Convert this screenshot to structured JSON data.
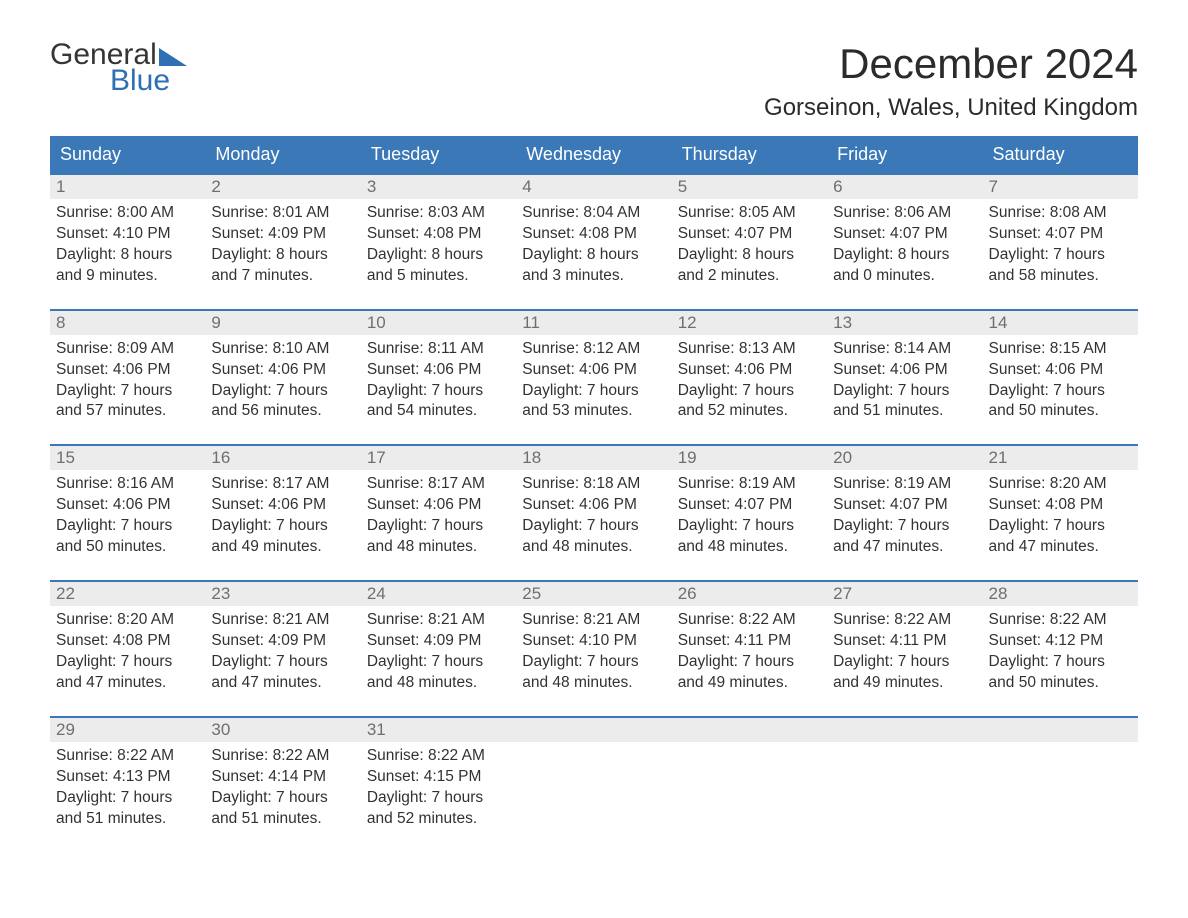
{
  "logo": {
    "word1": "General",
    "word2": "Blue"
  },
  "title": "December 2024",
  "location": "Gorseinon, Wales, United Kingdom",
  "colors": {
    "header_bg": "#3a78b8",
    "header_text": "#ffffff",
    "daynum_bg": "#ececec",
    "daynum_text": "#6f6f6f",
    "body_text": "#323232",
    "accent": "#2f6fb3"
  },
  "day_names": [
    "Sunday",
    "Monday",
    "Tuesday",
    "Wednesday",
    "Thursday",
    "Friday",
    "Saturday"
  ],
  "weeks": [
    [
      {
        "n": "1",
        "sunrise": "8:00 AM",
        "sunset": "4:10 PM",
        "dl1": "8 hours",
        "dl2": "and 9 minutes."
      },
      {
        "n": "2",
        "sunrise": "8:01 AM",
        "sunset": "4:09 PM",
        "dl1": "8 hours",
        "dl2": "and 7 minutes."
      },
      {
        "n": "3",
        "sunrise": "8:03 AM",
        "sunset": "4:08 PM",
        "dl1": "8 hours",
        "dl2": "and 5 minutes."
      },
      {
        "n": "4",
        "sunrise": "8:04 AM",
        "sunset": "4:08 PM",
        "dl1": "8 hours",
        "dl2": "and 3 minutes."
      },
      {
        "n": "5",
        "sunrise": "8:05 AM",
        "sunset": "4:07 PM",
        "dl1": "8 hours",
        "dl2": "and 2 minutes."
      },
      {
        "n": "6",
        "sunrise": "8:06 AM",
        "sunset": "4:07 PM",
        "dl1": "8 hours",
        "dl2": "and 0 minutes."
      },
      {
        "n": "7",
        "sunrise": "8:08 AM",
        "sunset": "4:07 PM",
        "dl1": "7 hours",
        "dl2": "and 58 minutes."
      }
    ],
    [
      {
        "n": "8",
        "sunrise": "8:09 AM",
        "sunset": "4:06 PM",
        "dl1": "7 hours",
        "dl2": "and 57 minutes."
      },
      {
        "n": "9",
        "sunrise": "8:10 AM",
        "sunset": "4:06 PM",
        "dl1": "7 hours",
        "dl2": "and 56 minutes."
      },
      {
        "n": "10",
        "sunrise": "8:11 AM",
        "sunset": "4:06 PM",
        "dl1": "7 hours",
        "dl2": "and 54 minutes."
      },
      {
        "n": "11",
        "sunrise": "8:12 AM",
        "sunset": "4:06 PM",
        "dl1": "7 hours",
        "dl2": "and 53 minutes."
      },
      {
        "n": "12",
        "sunrise": "8:13 AM",
        "sunset": "4:06 PM",
        "dl1": "7 hours",
        "dl2": "and 52 minutes."
      },
      {
        "n": "13",
        "sunrise": "8:14 AM",
        "sunset": "4:06 PM",
        "dl1": "7 hours",
        "dl2": "and 51 minutes."
      },
      {
        "n": "14",
        "sunrise": "8:15 AM",
        "sunset": "4:06 PM",
        "dl1": "7 hours",
        "dl2": "and 50 minutes."
      }
    ],
    [
      {
        "n": "15",
        "sunrise": "8:16 AM",
        "sunset": "4:06 PM",
        "dl1": "7 hours",
        "dl2": "and 50 minutes."
      },
      {
        "n": "16",
        "sunrise": "8:17 AM",
        "sunset": "4:06 PM",
        "dl1": "7 hours",
        "dl2": "and 49 minutes."
      },
      {
        "n": "17",
        "sunrise": "8:17 AM",
        "sunset": "4:06 PM",
        "dl1": "7 hours",
        "dl2": "and 48 minutes."
      },
      {
        "n": "18",
        "sunrise": "8:18 AM",
        "sunset": "4:06 PM",
        "dl1": "7 hours",
        "dl2": "and 48 minutes."
      },
      {
        "n": "19",
        "sunrise": "8:19 AM",
        "sunset": "4:07 PM",
        "dl1": "7 hours",
        "dl2": "and 48 minutes."
      },
      {
        "n": "20",
        "sunrise": "8:19 AM",
        "sunset": "4:07 PM",
        "dl1": "7 hours",
        "dl2": "and 47 minutes."
      },
      {
        "n": "21",
        "sunrise": "8:20 AM",
        "sunset": "4:08 PM",
        "dl1": "7 hours",
        "dl2": "and 47 minutes."
      }
    ],
    [
      {
        "n": "22",
        "sunrise": "8:20 AM",
        "sunset": "4:08 PM",
        "dl1": "7 hours",
        "dl2": "and 47 minutes."
      },
      {
        "n": "23",
        "sunrise": "8:21 AM",
        "sunset": "4:09 PM",
        "dl1": "7 hours",
        "dl2": "and 47 minutes."
      },
      {
        "n": "24",
        "sunrise": "8:21 AM",
        "sunset": "4:09 PM",
        "dl1": "7 hours",
        "dl2": "and 48 minutes."
      },
      {
        "n": "25",
        "sunrise": "8:21 AM",
        "sunset": "4:10 PM",
        "dl1": "7 hours",
        "dl2": "and 48 minutes."
      },
      {
        "n": "26",
        "sunrise": "8:22 AM",
        "sunset": "4:11 PM",
        "dl1": "7 hours",
        "dl2": "and 49 minutes."
      },
      {
        "n": "27",
        "sunrise": "8:22 AM",
        "sunset": "4:11 PM",
        "dl1": "7 hours",
        "dl2": "and 49 minutes."
      },
      {
        "n": "28",
        "sunrise": "8:22 AM",
        "sunset": "4:12 PM",
        "dl1": "7 hours",
        "dl2": "and 50 minutes."
      }
    ],
    [
      {
        "n": "29",
        "sunrise": "8:22 AM",
        "sunset": "4:13 PM",
        "dl1": "7 hours",
        "dl2": "and 51 minutes."
      },
      {
        "n": "30",
        "sunrise": "8:22 AM",
        "sunset": "4:14 PM",
        "dl1": "7 hours",
        "dl2": "and 51 minutes."
      },
      {
        "n": "31",
        "sunrise": "8:22 AM",
        "sunset": "4:15 PM",
        "dl1": "7 hours",
        "dl2": "and 52 minutes."
      },
      null,
      null,
      null,
      null
    ]
  ],
  "labels": {
    "sunrise_prefix": "Sunrise: ",
    "sunset_prefix": "Sunset: ",
    "daylight_prefix": "Daylight: "
  }
}
